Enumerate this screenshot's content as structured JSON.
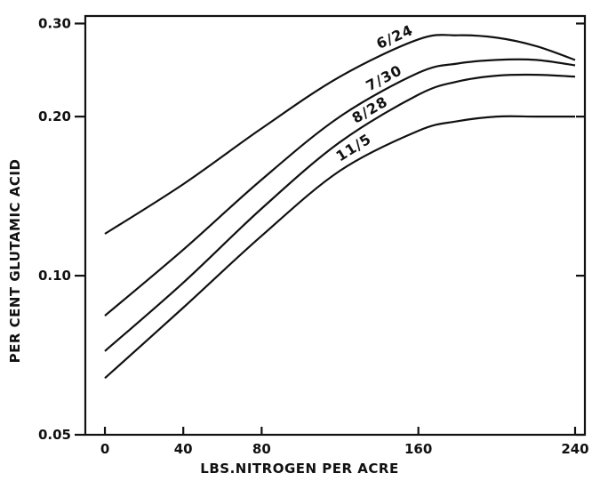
{
  "chart_data": {
    "type": "line",
    "xlabel": "LBS.NITROGEN PER ACRE",
    "ylabel": "PER CENT GLUTAMIC ACID",
    "xlim": [
      -10,
      245
    ],
    "ylim": [
      0.05,
      0.31
    ],
    "y_scale": "log",
    "grid": false,
    "x_ticks": [
      0,
      40,
      80,
      160,
      240
    ],
    "x_tick_labels": [
      "0",
      "40",
      "80",
      "160",
      "240"
    ],
    "y_ticks": [
      0.05,
      0.1,
      0.2,
      0.3
    ],
    "y_tick_labels": [
      "0.05",
      "0.10",
      "0.20",
      "0.30"
    ],
    "series": [
      {
        "name": "6/24",
        "x": [
          0,
          40,
          80,
          120,
          160,
          180,
          200,
          220,
          240
        ],
        "y": [
          0.12,
          0.149,
          0.19,
          0.238,
          0.28,
          0.285,
          0.282,
          0.272,
          0.256
        ]
      },
      {
        "name": "7/30",
        "x": [
          0,
          40,
          80,
          120,
          160,
          180,
          200,
          220,
          240
        ],
        "y": [
          0.084,
          0.112,
          0.152,
          0.2,
          0.242,
          0.252,
          0.256,
          0.256,
          0.25
        ]
      },
      {
        "name": "8/28",
        "x": [
          0,
          40,
          80,
          120,
          160,
          180,
          200,
          220,
          240
        ],
        "y": [
          0.072,
          0.097,
          0.134,
          0.179,
          0.22,
          0.233,
          0.239,
          0.24,
          0.238
        ]
      },
      {
        "name": "11/5",
        "x": [
          0,
          40,
          80,
          120,
          160,
          180,
          200,
          220,
          240
        ],
        "y": [
          0.064,
          0.087,
          0.119,
          0.158,
          0.188,
          0.196,
          0.2,
          0.2,
          0.2
        ]
      }
    ]
  }
}
